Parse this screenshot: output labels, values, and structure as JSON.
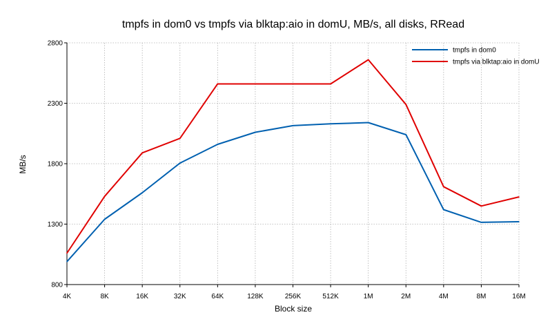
{
  "chart_data": {
    "type": "line",
    "title": "tmpfs in dom0 vs tmpfs via blktap:aio in domU, MB/s, all disks, RRead",
    "xlabel": "Block size",
    "ylabel": "MB/s",
    "categories": [
      "4K",
      "8K",
      "16K",
      "32K",
      "64K",
      "128K",
      "256K",
      "512K",
      "1M",
      "2M",
      "4M",
      "8M",
      "16M"
    ],
    "yticks": [
      800,
      1300,
      1800,
      2300,
      2800
    ],
    "ylim": [
      800,
      2800
    ],
    "grid": true,
    "legend_position": "top-right",
    "series": [
      {
        "name": "tmpfs in dom0",
        "color": "#0060b0",
        "values": [
          990,
          1340,
          1560,
          1805,
          1960,
          2060,
          2115,
          2130,
          2140,
          2040,
          1420,
          1315,
          1320
        ]
      },
      {
        "name": "tmpfs via blktap:aio in domU",
        "color": "#e00000",
        "values": [
          1060,
          1530,
          1890,
          2010,
          2460,
          2460,
          2460,
          2460,
          2660,
          2290,
          1610,
          1450,
          1525
        ]
      }
    ]
  }
}
